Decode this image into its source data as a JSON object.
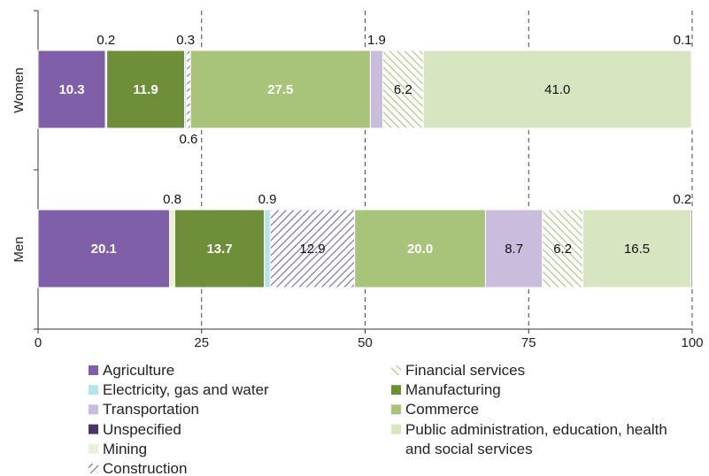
{
  "chart_data": {
    "type": "stacked-barh",
    "categories": [
      "Women",
      "Men"
    ],
    "series": [
      {
        "name": "Agriculture",
        "color": "#7f5fa8",
        "values": [
          10.3,
          20.1
        ],
        "value_labels": [
          "10.3",
          "20.1"
        ]
      },
      {
        "name": "Mining",
        "color": "#e9f1db",
        "values": [
          0.2,
          0.8
        ],
        "value_labels": [
          "0.2",
          "0.8"
        ]
      },
      {
        "name": "Manufacturing",
        "color": "#6e8e3a",
        "values": [
          11.9,
          13.7
        ],
        "value_labels": [
          "11.9",
          "13.7"
        ]
      },
      {
        "name": "Electricity, gas and water",
        "color": "#b6e3ea",
        "values": [
          0.3,
          0.9
        ],
        "value_labels": [
          "0.3",
          "0.9"
        ]
      },
      {
        "name": "Construction",
        "color": "#7a62a8",
        "hatch": true,
        "values": [
          0.6,
          12.9
        ],
        "value_labels": [
          "0.6",
          "12.9"
        ]
      },
      {
        "name": "Commerce",
        "color": "#a8c37a",
        "values": [
          27.5,
          20.0
        ],
        "value_labels": [
          "27.5",
          "20.0"
        ]
      },
      {
        "name": "Transportation",
        "color": "#c9bcdc",
        "values": [
          1.9,
          8.7
        ],
        "value_labels": [
          "1.9",
          "8.7"
        ]
      },
      {
        "name": "Financial services",
        "color": "#a8c37a",
        "hatch": true,
        "values": [
          6.2,
          6.2
        ],
        "value_labels": [
          "6.2",
          "6.2"
        ]
      },
      {
        "name": "Public administration, education, health and social services",
        "color": "#d7e5c1",
        "values": [
          41.0,
          16.5
        ],
        "value_labels": [
          "41.0",
          "16.5"
        ]
      },
      {
        "name": "Unspecified",
        "color": "#4a3566",
        "values": [
          0.1,
          0.2
        ],
        "value_labels": [
          "0.1",
          "0.2"
        ]
      }
    ],
    "xlim": [
      0,
      100
    ],
    "xticks": [
      0,
      25,
      50,
      75,
      100
    ],
    "grid": true
  }
}
